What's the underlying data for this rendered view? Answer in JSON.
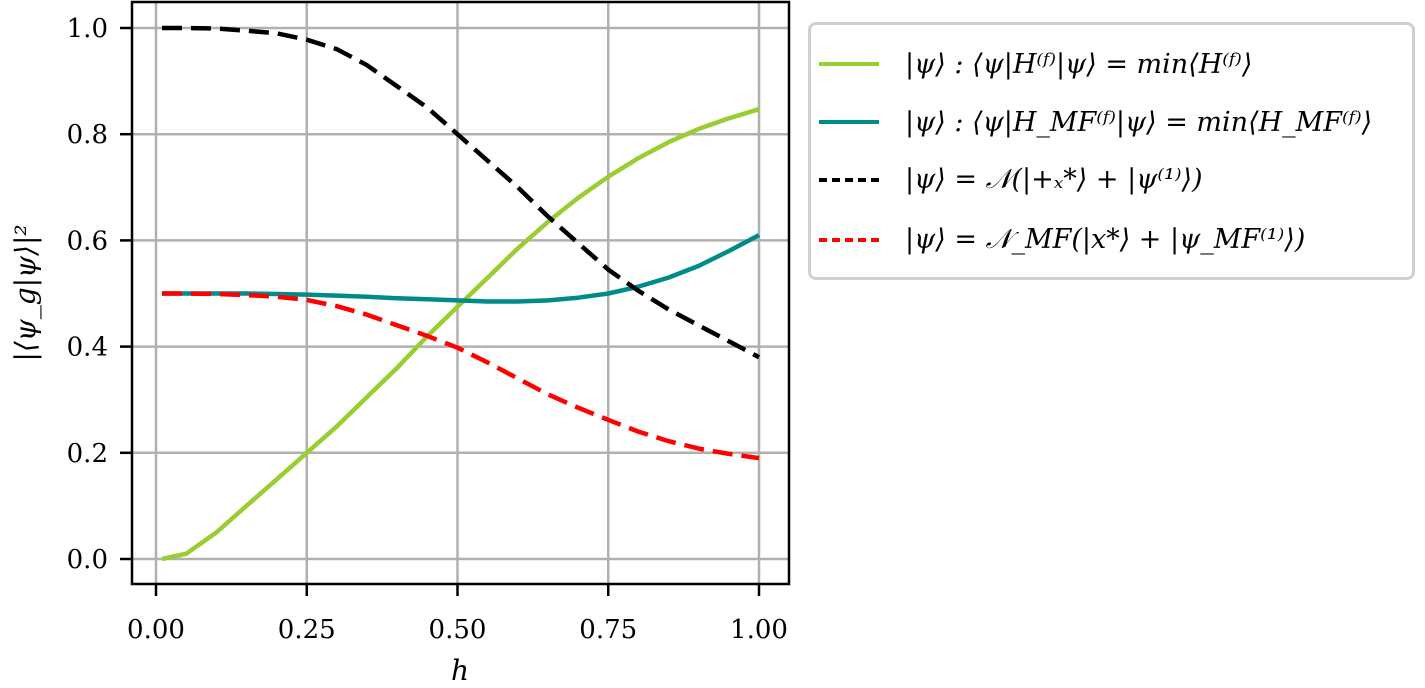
{
  "chart_data": {
    "type": "line",
    "title": "",
    "xlabel": "h",
    "ylabel": "|⟨ψ_g|ψ⟩|²",
    "xlim": [
      -0.04,
      1.05
    ],
    "ylim": [
      -0.05,
      1.05
    ],
    "grid": true,
    "legend_position": "outside upper right",
    "x_ticks": [
      "0.00",
      "0.25",
      "0.50",
      "0.75",
      "1.00"
    ],
    "y_ticks": [
      "0.0",
      "0.2",
      "0.4",
      "0.6",
      "0.8",
      "1.0"
    ],
    "x": [
      0.01,
      0.05,
      0.1,
      0.15,
      0.2,
      0.25,
      0.3,
      0.35,
      0.4,
      0.45,
      0.5,
      0.55,
      0.6,
      0.65,
      0.7,
      0.75,
      0.8,
      0.85,
      0.9,
      0.95,
      1.0
    ],
    "series": [
      {
        "name": "|ψ⟩ : ⟨ψ|H^(f)|ψ⟩ = min⟨H^(f)⟩",
        "color": "#9ACD32",
        "style": "solid",
        "values": [
          0.0,
          0.01,
          0.05,
          0.1,
          0.15,
          0.2,
          0.25,
          0.305,
          0.36,
          0.42,
          0.475,
          0.53,
          0.585,
          0.635,
          0.68,
          0.72,
          0.755,
          0.785,
          0.81,
          0.83,
          0.847
        ]
      },
      {
        "name": "|ψ⟩ : ⟨ψ|H_MF^(f)|ψ⟩ = min⟨H_MF^(f)⟩",
        "color": "#008B8B",
        "style": "solid",
        "values": [
          0.5,
          0.5,
          0.5,
          0.5,
          0.499,
          0.498,
          0.496,
          0.494,
          0.491,
          0.489,
          0.487,
          0.485,
          0.485,
          0.487,
          0.492,
          0.5,
          0.513,
          0.53,
          0.552,
          0.58,
          0.61
        ]
      },
      {
        "name": "|ψ⟩ = N(|+_x*⟩ + |ψ^(1)⟩)",
        "color": "#000000",
        "style": "dashed",
        "values": [
          1.0,
          1.0,
          0.999,
          0.995,
          0.99,
          0.978,
          0.96,
          0.93,
          0.89,
          0.85,
          0.8,
          0.75,
          0.7,
          0.645,
          0.595,
          0.545,
          0.505,
          0.47,
          0.44,
          0.41,
          0.38
        ]
      },
      {
        "name": "|ψ⟩ = N_MF(|x*⟩ + |ψ_MF^(1)⟩)",
        "color": "#FF0000",
        "style": "dashed",
        "values": [
          0.5,
          0.5,
          0.499,
          0.497,
          0.494,
          0.488,
          0.476,
          0.46,
          0.44,
          0.42,
          0.398,
          0.37,
          0.34,
          0.31,
          0.285,
          0.262,
          0.24,
          0.222,
          0.208,
          0.198,
          0.19
        ]
      }
    ]
  },
  "legend": {
    "items": [
      {
        "label": "|ψ⟩ : ⟨ψ|H⁽ᶠ⁾|ψ⟩ = min⟨H⁽ᶠ⁾⟩"
      },
      {
        "label": "|ψ⟩ : ⟨ψ|H_MF⁽ᶠ⁾|ψ⟩ = min⟨H_MF⁽ᶠ⁾⟩"
      },
      {
        "label": "|ψ⟩ = 𝒩(|+ₓ*⟩ + |ψ⁽¹⁾⟩)"
      },
      {
        "label": "|ψ⟩ = 𝒩_MF(|x*⟩ + |ψ_MF⁽¹⁾⟩)"
      }
    ]
  }
}
